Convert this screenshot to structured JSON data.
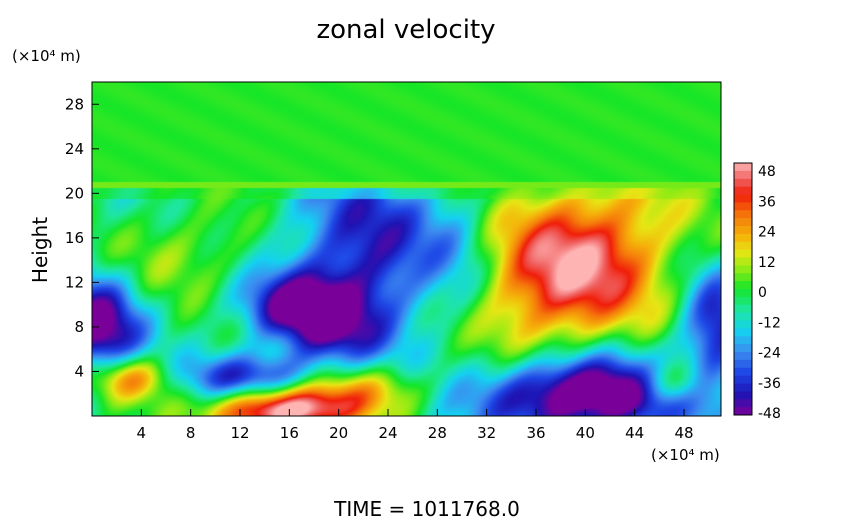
{
  "chart_data": {
    "type": "heatmap",
    "title": "zonal velocity",
    "ylabel": "Height",
    "y_unit": "(×10⁴ m)",
    "x_unit": "(×10⁴ m)",
    "x_ticks": [
      "4",
      "8",
      "12",
      "16",
      "20",
      "24",
      "28",
      "32",
      "36",
      "40",
      "44",
      "48"
    ],
    "y_ticks": [
      "4",
      "8",
      "12",
      "16",
      "20",
      "24",
      "28"
    ],
    "xlim": [
      0,
      51
    ],
    "ylim": [
      0,
      30
    ],
    "colorbar": {
      "ticks": [
        "48",
        "36",
        "24",
        "12",
        "0",
        "-12",
        "-24",
        "-36",
        "-48"
      ],
      "min": -48,
      "max": 48
    },
    "stops": [
      {
        "v": -48,
        "color": "#7a009a"
      },
      {
        "v": -40,
        "color": "#1e14b4"
      },
      {
        "v": -32,
        "color": "#1e46e6"
      },
      {
        "v": -24,
        "color": "#3c8cf0"
      },
      {
        "v": -16,
        "color": "#14d2f0"
      },
      {
        "v": -8,
        "color": "#1ee6a0"
      },
      {
        "v": 0,
        "color": "#14e628"
      },
      {
        "v": 8,
        "color": "#96eb14"
      },
      {
        "v": 14,
        "color": "#e6e614"
      },
      {
        "v": 20,
        "color": "#f5b40a"
      },
      {
        "v": 28,
        "color": "#f5780a"
      },
      {
        "v": 36,
        "color": "#f01e0a"
      },
      {
        "v": 42,
        "color": "#f06464"
      },
      {
        "v": 48,
        "color": "#ffb4b4"
      }
    ],
    "features": [
      {
        "kind": "plain",
        "region": "y>20.5",
        "value": 1
      },
      {
        "x": 39,
        "y": 13.5,
        "sx": 5.5,
        "sy": 5.5,
        "amp": 52,
        "tilt": 0.25
      },
      {
        "x": 40,
        "y": 2,
        "sx": 6,
        "sy": 2.5,
        "amp": -60
      },
      {
        "x": 22,
        "y": 14,
        "sx": 4.5,
        "sy": 6,
        "amp": -36
      },
      {
        "x": 19,
        "y": 8,
        "sx": 3,
        "sy": 2.5,
        "amp": -20
      },
      {
        "x": 0.5,
        "y": 8,
        "sx": 2.5,
        "sy": 3.5,
        "amp": -44
      },
      {
        "x": 50.5,
        "y": 8,
        "sx": 2,
        "sy": 3.5,
        "amp": -36
      },
      {
        "x": 13,
        "y": 3.5,
        "sx": 4,
        "sy": 1.5,
        "amp": -34
      },
      {
        "x": 15,
        "y": 0.5,
        "sx": 4,
        "sy": 1.5,
        "amp": 60
      },
      {
        "x": 3,
        "y": 3.5,
        "sx": 2.5,
        "sy": 1.5,
        "amp": 38
      },
      {
        "x": 22,
        "y": 2.5,
        "sx": 4,
        "sy": 1.8,
        "amp": 30
      },
      {
        "x": 8,
        "y": 15,
        "sx": 5,
        "sy": 3,
        "amp": 14
      },
      {
        "x": 30,
        "y": 15,
        "sx": 2,
        "sy": 5,
        "amp": -12
      },
      {
        "x": 47,
        "y": 3,
        "sx": 2,
        "sy": 1.5,
        "amp": 30
      },
      {
        "x": 16,
        "y": 10,
        "sx": 3,
        "sy": 2,
        "amp": -30
      }
    ]
  },
  "footer": {
    "time_label": "TIME  =  1011768.0"
  }
}
